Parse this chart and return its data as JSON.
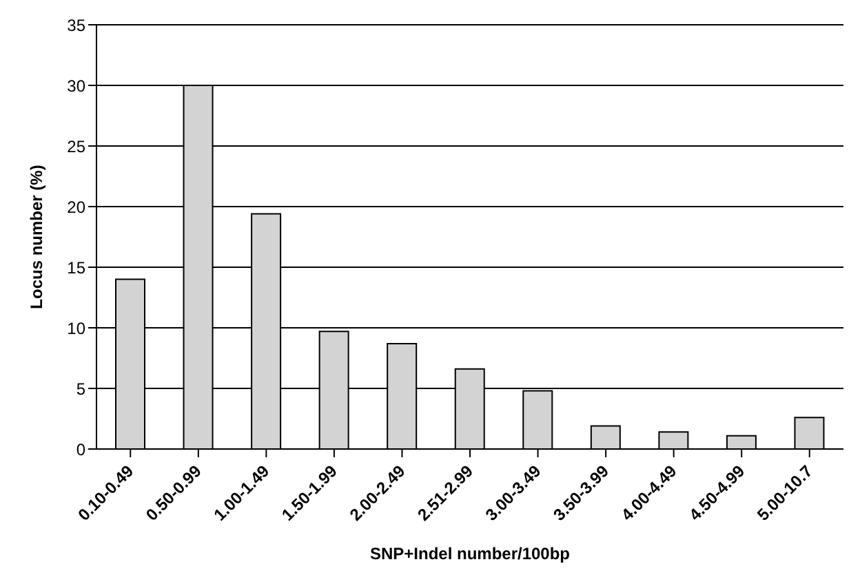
{
  "chart_data": {
    "type": "bar",
    "xlabel": "SNP+Indel number/100bp",
    "ylabel": "Locus number (%)",
    "categories": [
      "0.10-0.49",
      "0.50-0.99",
      "1.00-1.49",
      "1.50-1.99",
      "2.00-2.49",
      "2.51-2.99",
      "3.00-3.49",
      "3.50-3.99",
      "4.00-4.49",
      "4.50-4.99",
      "5.00-10.7"
    ],
    "values": [
      14,
      30,
      19.4,
      9.7,
      8.7,
      6.6,
      4.8,
      1.9,
      1.4,
      1.1,
      2.6
    ],
    "color": "#d3d3d3",
    "ylim": [
      0,
      35
    ],
    "yticks": [
      0,
      5,
      10,
      15,
      20,
      25,
      30,
      35
    ],
    "grid": "y"
  }
}
